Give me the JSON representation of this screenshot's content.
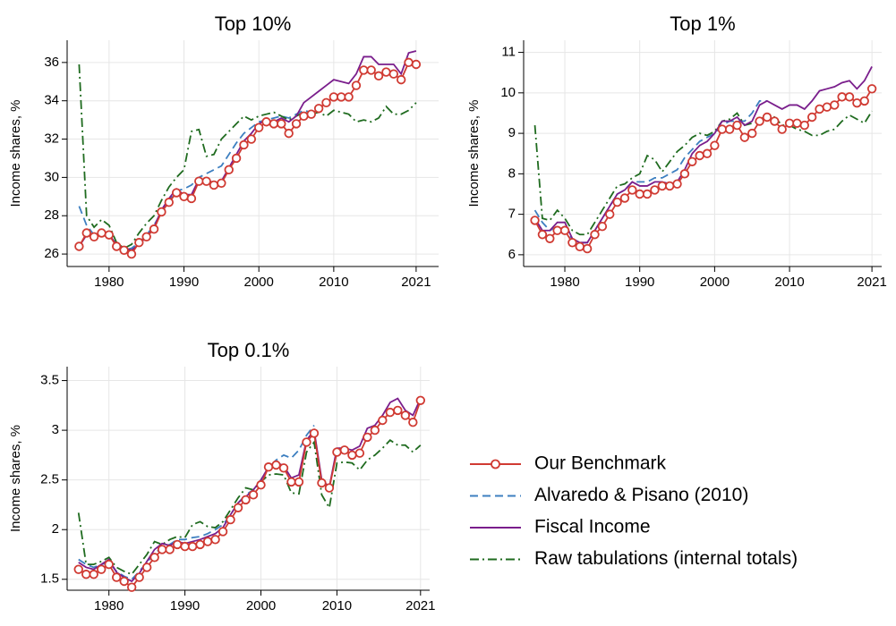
{
  "chart_data": [
    {
      "type": "line",
      "title": "Top 10%",
      "y_label": "Income shares, %",
      "x": [
        1976,
        1977,
        1978,
        1979,
        1980,
        1981,
        1982,
        1983,
        1984,
        1985,
        1986,
        1987,
        1988,
        1989,
        1990,
        1991,
        1992,
        1993,
        1994,
        1995,
        1996,
        1997,
        1998,
        1999,
        2000,
        2001,
        2002,
        2003,
        2004,
        2005,
        2006,
        2007,
        2008,
        2009,
        2010,
        2011,
        2012,
        2013,
        2014,
        2015,
        2016,
        2017,
        2018,
        2019,
        2020,
        2021
      ],
      "xlim": [
        1974.4,
        2024
      ],
      "xticks": [
        1980,
        1990,
        2000,
        2010,
        2021
      ],
      "ylim": [
        25.35,
        37.16
      ],
      "yticks": [
        26,
        28,
        30,
        32,
        34,
        36
      ],
      "grid": true,
      "series": [
        {
          "name": "Our Benchmark",
          "color": "#d03a32",
          "style": "solid",
          "marker": "circle",
          "values": [
            26.4,
            27.1,
            26.9,
            27.1,
            27.0,
            26.4,
            26.2,
            26.0,
            26.6,
            26.9,
            27.3,
            28.2,
            28.7,
            29.2,
            29.0,
            28.9,
            29.8,
            29.8,
            29.6,
            29.7,
            30.4,
            31.0,
            31.7,
            32.0,
            32.6,
            32.9,
            32.8,
            32.8,
            32.3,
            32.8,
            33.2,
            33.3,
            33.6,
            33.9,
            34.2,
            34.2,
            34.2,
            34.8,
            35.6,
            35.6,
            35.3,
            35.5,
            35.4,
            35.1,
            36.0,
            35.9
          ]
        },
        {
          "name": "Alvaredo & Pisano (2010)",
          "color": "#3d7fc0",
          "style": "dashed",
          "values": [
            28.5,
            27.5,
            27.0,
            27.2,
            27.0,
            26.5,
            26.2,
            26.3,
            26.6,
            27.0,
            27.5,
            28.2,
            28.8,
            29.3,
            29.4,
            29.6,
            30.0,
            30.2,
            30.4,
            30.6,
            31.2,
            31.8,
            32.3,
            32.6,
            32.9,
            33.0,
            33.1,
            33.2,
            33.1,
            33.3,
            33.5,
            33.4,
            null,
            null,
            null,
            null,
            null,
            null,
            null,
            null,
            null,
            null,
            null,
            null,
            null,
            null
          ]
        },
        {
          "name": "Fiscal Income",
          "color": "#7a1e8c",
          "style": "solid",
          "values": [
            26.4,
            27.0,
            27.0,
            27.1,
            27.0,
            26.5,
            26.3,
            26.2,
            26.5,
            26.9,
            27.4,
            28.3,
            28.9,
            29.4,
            29.1,
            29.1,
            29.9,
            29.9,
            29.7,
            29.8,
            30.5,
            31.2,
            31.9,
            32.3,
            32.8,
            33.0,
            32.9,
            33.1,
            32.9,
            33.2,
            33.9,
            34.2,
            34.5,
            34.8,
            35.1,
            35.0,
            34.9,
            35.4,
            36.3,
            36.3,
            35.9,
            35.9,
            35.9,
            35.4,
            36.5,
            36.6
          ]
        },
        {
          "name": "Raw tabulations (internal totals)",
          "color": "#1f6b1f",
          "style": "dashdot",
          "values": [
            35.9,
            28.0,
            27.4,
            27.8,
            27.5,
            26.6,
            26.3,
            26.5,
            27.1,
            27.6,
            28.0,
            28.8,
            29.5,
            30.0,
            30.4,
            32.4,
            32.5,
            31.1,
            31.2,
            32.0,
            32.4,
            32.8,
            33.2,
            33.0,
            33.2,
            33.3,
            33.4,
            33.2,
            33.0,
            33.2,
            33.4,
            33.3,
            33.4,
            33.2,
            33.5,
            33.4,
            33.3,
            32.9,
            33.0,
            32.9,
            33.1,
            33.7,
            33.3,
            33.3,
            33.5,
            33.9
          ]
        }
      ]
    },
    {
      "type": "line",
      "title": "Top 1%",
      "y_label": "Income shares, %",
      "x": [
        1976,
        1977,
        1978,
        1979,
        1980,
        1981,
        1982,
        1983,
        1984,
        1985,
        1986,
        1987,
        1988,
        1989,
        1990,
        1991,
        1992,
        1993,
        1994,
        1995,
        1996,
        1997,
        1998,
        1999,
        2000,
        2001,
        2002,
        2003,
        2004,
        2005,
        2006,
        2007,
        2008,
        2009,
        2010,
        2011,
        2012,
        2013,
        2014,
        2015,
        2016,
        2017,
        2018,
        2019,
        2020,
        2021
      ],
      "xlim": [
        1974.5,
        2022.3
      ],
      "xticks": [
        1980,
        1990,
        2000,
        2010,
        2021
      ],
      "ylim": [
        5.71,
        11.3
      ],
      "yticks": [
        6,
        7,
        8,
        9,
        10,
        11
      ],
      "grid": true,
      "series": [
        {
          "color": "#d03a32",
          "style": "solid",
          "marker": "circle",
          "values": [
            6.85,
            6.5,
            6.4,
            6.6,
            6.6,
            6.3,
            6.2,
            6.15,
            6.5,
            6.7,
            7.0,
            7.3,
            7.4,
            7.6,
            7.5,
            7.5,
            7.6,
            7.7,
            7.7,
            7.75,
            8.0,
            8.3,
            8.45,
            8.5,
            8.7,
            9.1,
            9.1,
            9.2,
            8.9,
            9.0,
            9.3,
            9.4,
            9.3,
            9.1,
            9.25,
            9.25,
            9.2,
            9.4,
            9.6,
            9.65,
            9.7,
            9.9,
            9.9,
            9.75,
            9.8,
            10.1
          ]
        },
        {
          "color": "#3d7fc0",
          "style": "dashed",
          "values": [
            7.1,
            6.8,
            6.6,
            6.7,
            6.6,
            6.4,
            6.3,
            6.3,
            6.6,
            6.9,
            7.2,
            7.5,
            7.6,
            7.8,
            7.8,
            7.8,
            7.9,
            7.9,
            8.0,
            8.1,
            8.4,
            8.6,
            8.8,
            8.9,
            9.0,
            9.2,
            9.3,
            9.3,
            9.3,
            9.5,
            9.8,
            9.8,
            null,
            null,
            null,
            null,
            null,
            null,
            null,
            null,
            null,
            null,
            null,
            null,
            null,
            null
          ]
        },
        {
          "color": "#7a1e8c",
          "style": "solid",
          "values": [
            6.9,
            6.6,
            6.6,
            6.8,
            6.8,
            6.4,
            6.3,
            6.3,
            6.6,
            6.9,
            7.2,
            7.5,
            7.6,
            7.8,
            7.7,
            7.7,
            7.8,
            7.8,
            7.75,
            7.8,
            8.1,
            8.5,
            8.7,
            8.8,
            9.0,
            9.3,
            9.3,
            9.4,
            9.2,
            9.3,
            9.7,
            9.8,
            9.7,
            9.6,
            9.7,
            9.7,
            9.6,
            9.8,
            10.05,
            10.1,
            10.15,
            10.25,
            10.3,
            10.1,
            10.3,
            10.65
          ]
        },
        {
          "color": "#1f6b1f",
          "style": "dashdot",
          "values": [
            9.2,
            6.9,
            6.85,
            7.1,
            6.9,
            6.6,
            6.5,
            6.5,
            6.8,
            7.1,
            7.4,
            7.7,
            7.75,
            7.9,
            8.0,
            8.45,
            8.35,
            8.05,
            8.3,
            8.55,
            8.7,
            8.9,
            9.0,
            8.95,
            9.05,
            9.3,
            9.35,
            9.5,
            9.2,
            9.25,
            9.3,
            9.5,
            9.4,
            9.2,
            9.2,
            9.1,
            9.05,
            8.95,
            8.95,
            9.05,
            9.1,
            9.3,
            9.45,
            9.35,
            9.25,
            9.55
          ]
        }
      ]
    },
    {
      "type": "line",
      "title": "Top 0.1%",
      "y_label": "Income shares, %",
      "x": [
        1976,
        1977,
        1978,
        1979,
        1980,
        1981,
        1982,
        1983,
        1984,
        1985,
        1986,
        1987,
        1988,
        1989,
        1990,
        1991,
        1992,
        1993,
        1994,
        1995,
        1996,
        1997,
        1998,
        1999,
        2000,
        2001,
        2002,
        2003,
        2004,
        2005,
        2006,
        2007,
        2008,
        2009,
        2010,
        2011,
        2012,
        2013,
        2014,
        2015,
        2016,
        2017,
        2018,
        2019,
        2020,
        2021
      ],
      "xlim": [
        1974.5,
        2022.2
      ],
      "xticks": [
        1980,
        1990,
        2000,
        2010,
        2021
      ],
      "ylim": [
        1.39,
        3.64
      ],
      "yticks": [
        1.5,
        2,
        2.5,
        3,
        3.5
      ],
      "grid": true,
      "series": [
        {
          "color": "#d03a32",
          "style": "solid",
          "marker": "circle",
          "values": [
            1.6,
            1.55,
            1.55,
            1.6,
            1.65,
            1.52,
            1.48,
            1.42,
            1.52,
            1.62,
            1.72,
            1.8,
            1.8,
            1.85,
            1.83,
            1.83,
            1.85,
            1.88,
            1.9,
            1.98,
            2.1,
            2.22,
            2.3,
            2.35,
            2.45,
            2.63,
            2.65,
            2.62,
            2.48,
            2.48,
            2.88,
            2.97,
            2.47,
            2.42,
            2.78,
            2.8,
            2.75,
            2.77,
            2.93,
            3.0,
            3.1,
            3.18,
            3.2,
            3.15,
            3.08,
            3.3
          ]
        },
        {
          "color": "#3d7fc0",
          "style": "dashed",
          "values": [
            1.7,
            1.65,
            1.62,
            1.65,
            1.67,
            1.58,
            1.53,
            1.5,
            1.58,
            1.67,
            1.76,
            1.82,
            1.85,
            1.9,
            1.9,
            1.92,
            1.93,
            1.96,
            2.0,
            2.05,
            2.15,
            2.27,
            2.35,
            2.4,
            2.5,
            2.62,
            2.7,
            2.75,
            2.72,
            2.8,
            2.95,
            3.05,
            null,
            null,
            null,
            null,
            null,
            null,
            null,
            null,
            null,
            null,
            null,
            null,
            null,
            null
          ]
        },
        {
          "color": "#7a1e8c",
          "style": "solid",
          "values": [
            1.67,
            1.62,
            1.6,
            1.65,
            1.7,
            1.57,
            1.52,
            1.48,
            1.56,
            1.68,
            1.8,
            1.86,
            1.84,
            1.88,
            1.86,
            1.88,
            1.9,
            1.93,
            1.96,
            2.02,
            2.15,
            2.27,
            2.33,
            2.4,
            2.5,
            2.63,
            2.68,
            2.64,
            2.52,
            2.55,
            2.9,
            3.0,
            2.5,
            2.43,
            2.82,
            2.82,
            2.8,
            2.84,
            3.02,
            3.05,
            3.15,
            3.28,
            3.32,
            3.2,
            3.15,
            3.32
          ]
        },
        {
          "color": "#1f6b1f",
          "style": "dashdot",
          "values": [
            2.17,
            1.65,
            1.65,
            1.68,
            1.72,
            1.62,
            1.58,
            1.55,
            1.65,
            1.75,
            1.88,
            1.85,
            1.9,
            1.93,
            1.92,
            2.05,
            2.08,
            2.03,
            2.02,
            2.08,
            2.2,
            2.32,
            2.42,
            2.4,
            2.48,
            2.55,
            2.56,
            2.55,
            2.37,
            2.36,
            2.78,
            2.88,
            2.35,
            2.22,
            2.67,
            2.68,
            2.67,
            2.6,
            2.7,
            2.75,
            2.82,
            2.9,
            2.85,
            2.85,
            2.78,
            2.85
          ]
        }
      ]
    }
  ]
}
